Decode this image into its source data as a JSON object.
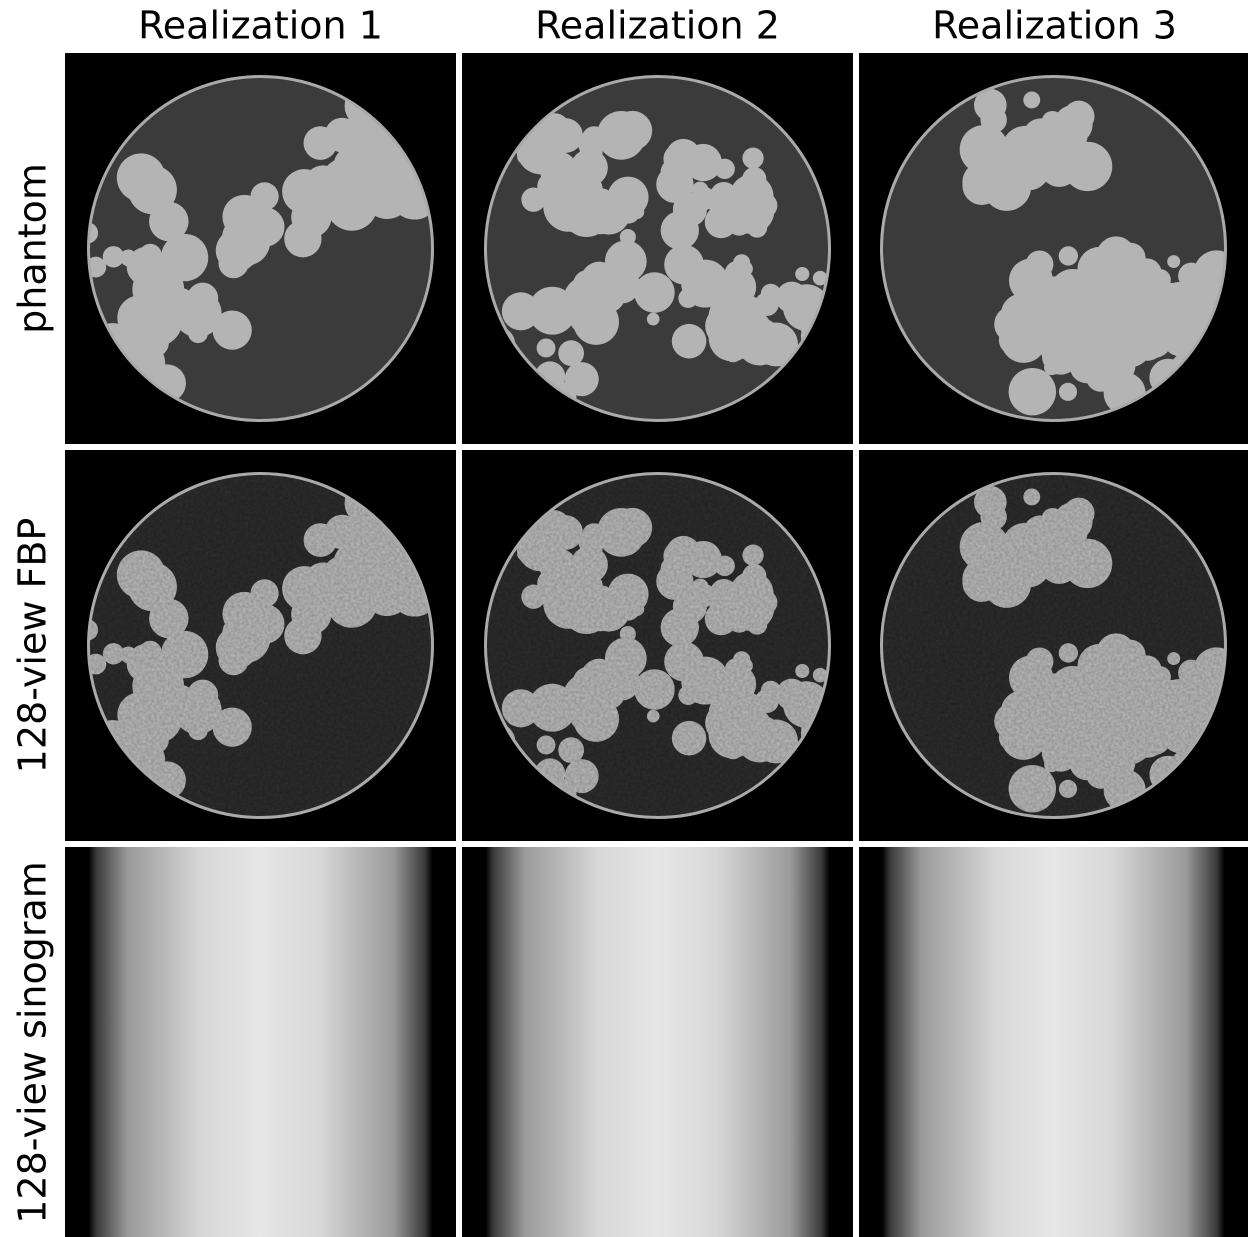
{
  "column_titles": [
    "Realization 1",
    "Realization 2",
    "Realization 3"
  ],
  "row_labels": [
    "phantom",
    "128-view FBP",
    "128-view sinogram"
  ]
}
